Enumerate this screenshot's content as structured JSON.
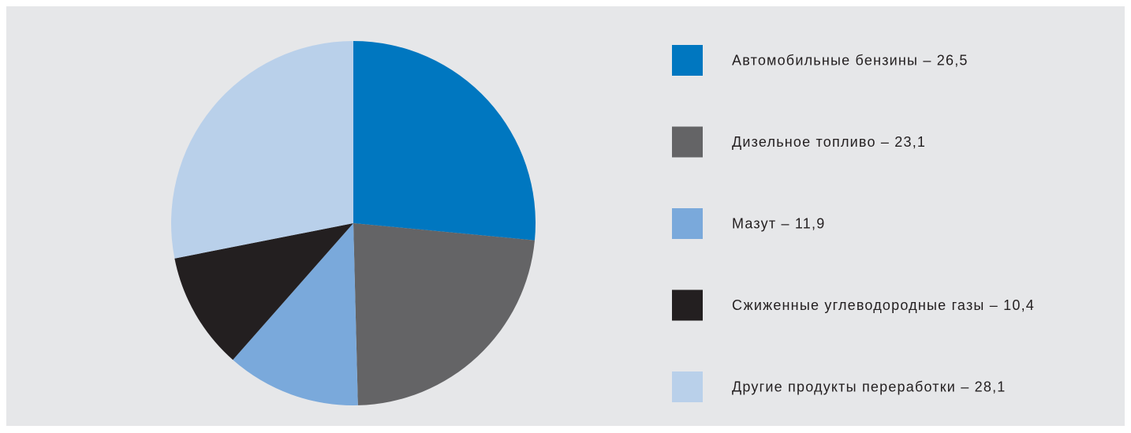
{
  "chart_data": {
    "type": "pie",
    "categories": [
      "Автомобильные бензины – 26,5",
      "Дизельное топливо – 23,1",
      "Мазут – 11,9",
      "Сжиженные углеводородные газы – 10,4",
      "Другие продукты переработки – 28,1"
    ],
    "values": [
      26.5,
      23.1,
      11.9,
      10.4,
      28.1
    ],
    "colors": [
      "#0077c0",
      "#646466",
      "#7aa9db",
      "#231f20",
      "#b9d0ea"
    ],
    "legend": "right"
  }
}
